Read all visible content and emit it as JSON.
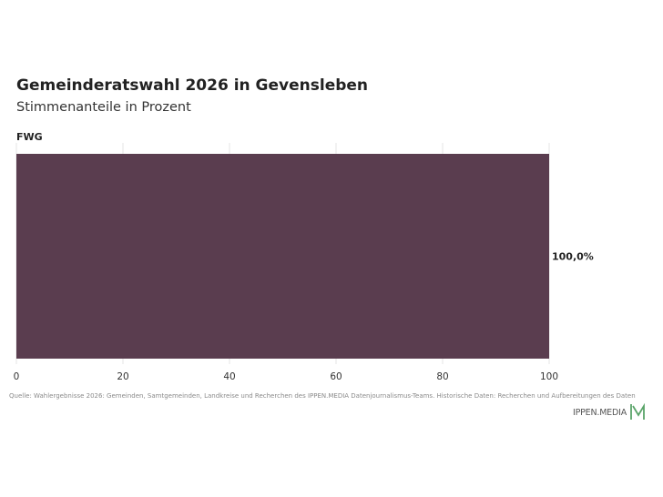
{
  "title": "Gemeinderatswahl 2026 in Gevensleben",
  "subtitle": "Stimmenanteile in Prozent",
  "source": "Quelle: Wahlergebnisse 2026: Gemeinden, Samtgemeinden, Landkreise und Recherchen des IPPEN.MEDIA Datenjournalismus-Teams. Historische Daten: Recherchen und Aufbereitungen des Daten",
  "brand": {
    "name": "IPPEN.MEDIA",
    "logo_icon": "ippen-media-m-logo-icon",
    "logo_color": "#5aa469"
  },
  "chart_data": {
    "type": "bar",
    "orientation": "horizontal",
    "categories": [
      "FWG"
    ],
    "values": [
      100.0
    ],
    "value_labels": [
      "100,0%"
    ],
    "colors": [
      "#5a3d4f"
    ],
    "xlim": [
      0,
      100
    ],
    "xticks": [
      0,
      20,
      40,
      60,
      80,
      100
    ],
    "grid": true
  }
}
